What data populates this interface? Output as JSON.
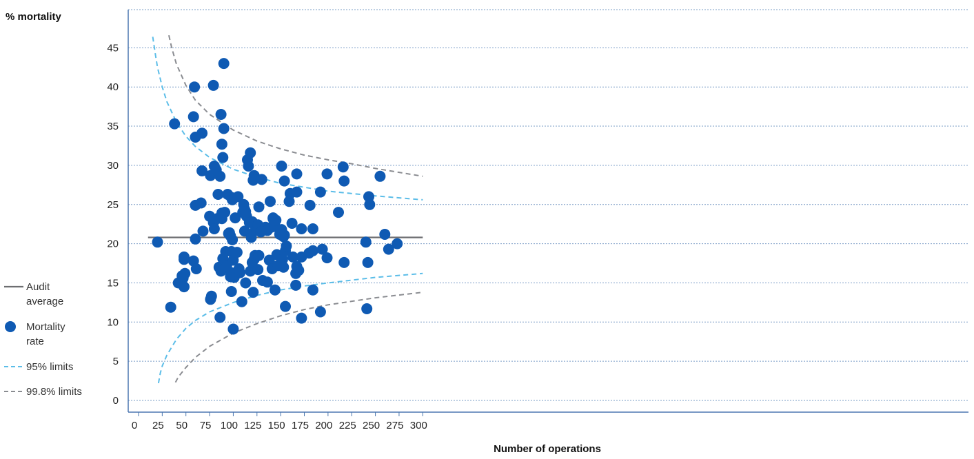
{
  "chart_data": {
    "type": "scatter",
    "ylabel": "% mortality",
    "xlabel": "Number of operations",
    "xlim": [
      0,
      300
    ],
    "ylim": [
      0,
      48
    ],
    "x_ticks": [
      0,
      25,
      50,
      75,
      100,
      125,
      150,
      175,
      200,
      225,
      250,
      275,
      300
    ],
    "y_ticks": [
      0,
      5,
      10,
      15,
      20,
      25,
      30,
      35,
      40,
      45
    ],
    "grid": "horizontal-dotted",
    "legend_position": "left",
    "colors": {
      "audit_average": "#6d6e71",
      "mortality_rate": "#0f5ab3",
      "limit95": "#5bbde8",
      "limit998": "#8a8c91",
      "grid": "#7a9cc6",
      "axis": "#4b77b0"
    },
    "legend": [
      {
        "key": "audit_average",
        "label_lines": [
          "Audit",
          "average"
        ],
        "marker": "line"
      },
      {
        "key": "mortality_rate",
        "label_lines": [
          "Mortality",
          "rate"
        ],
        "marker": "dot"
      },
      {
        "key": "limit95",
        "label_lines": [
          "95% limits"
        ],
        "marker": "dash"
      },
      {
        "key": "limit998",
        "label_lines": [
          "99.8% limits"
        ],
        "marker": "dash"
      }
    ],
    "audit_average": {
      "value": 20.8,
      "x_range": [
        10,
        300
      ]
    },
    "limit95_upper": [
      [
        15,
        46.4
      ],
      [
        18,
        44.0
      ],
      [
        20,
        42.5
      ],
      [
        25,
        40.0
      ],
      [
        30,
        38.1
      ],
      [
        40,
        35.5
      ],
      [
        50,
        33.7
      ],
      [
        60,
        32.4
      ],
      [
        75,
        31.0
      ],
      [
        100,
        29.5
      ],
      [
        125,
        28.5
      ],
      [
        150,
        27.7
      ],
      [
        175,
        27.2
      ],
      [
        200,
        26.7
      ],
      [
        250,
        26.1
      ],
      [
        300,
        25.6
      ]
    ],
    "limit95_lower": [
      [
        21,
        2.2
      ],
      [
        23,
        3.5
      ],
      [
        25,
        4.4
      ],
      [
        30,
        5.8
      ],
      [
        40,
        7.8
      ],
      [
        50,
        9.2
      ],
      [
        60,
        10.2
      ],
      [
        75,
        11.3
      ],
      [
        100,
        12.5
      ],
      [
        125,
        13.4
      ],
      [
        150,
        14.1
      ],
      [
        175,
        14.6
      ],
      [
        200,
        15.0
      ],
      [
        250,
        15.7
      ],
      [
        300,
        16.2
      ]
    ],
    "limit998_upper": [
      [
        32,
        46.6
      ],
      [
        35,
        45.0
      ],
      [
        40,
        42.9
      ],
      [
        50,
        40.2
      ],
      [
        60,
        38.3
      ],
      [
        75,
        36.5
      ],
      [
        100,
        34.5
      ],
      [
        125,
        33.1
      ],
      [
        150,
        32.1
      ],
      [
        175,
        31.3
      ],
      [
        200,
        30.7
      ],
      [
        225,
        30.2
      ],
      [
        250,
        29.6
      ],
      [
        300,
        28.6
      ]
    ],
    "limit998_lower": [
      [
        39,
        2.3
      ],
      [
        42,
        3.0
      ],
      [
        50,
        4.2
      ],
      [
        60,
        5.5
      ],
      [
        75,
        6.9
      ],
      [
        100,
        8.6
      ],
      [
        125,
        9.8
      ],
      [
        150,
        10.8
      ],
      [
        175,
        11.6
      ],
      [
        200,
        12.2
      ],
      [
        250,
        13.1
      ],
      [
        300,
        13.8
      ]
    ],
    "points": [
      [
        20,
        20.2
      ],
      [
        34,
        11.9
      ],
      [
        38,
        35.3
      ],
      [
        42,
        15.0
      ],
      [
        46,
        15.9
      ],
      [
        47,
        15.6
      ],
      [
        48,
        18.0
      ],
      [
        48,
        18.3
      ],
      [
        48,
        14.5
      ],
      [
        49,
        16.2
      ],
      [
        58,
        36.2
      ],
      [
        58,
        17.8
      ],
      [
        59,
        40.0
      ],
      [
        60,
        33.6
      ],
      [
        60,
        20.6
      ],
      [
        60,
        24.9
      ],
      [
        61,
        16.8
      ],
      [
        66,
        25.2
      ],
      [
        67,
        34.1
      ],
      [
        67,
        29.3
      ],
      [
        68,
        21.6
      ],
      [
        75,
        23.5
      ],
      [
        76,
        28.7
      ],
      [
        76,
        12.9
      ],
      [
        77,
        13.3
      ],
      [
        79,
        40.2
      ],
      [
        79,
        22.7
      ],
      [
        80,
        29.9
      ],
      [
        80,
        21.9
      ],
      [
        82,
        29.4
      ],
      [
        83,
        23.2
      ],
      [
        84,
        26.3
      ],
      [
        85,
        17.0
      ],
      [
        86,
        10.6
      ],
      [
        86,
        28.6
      ],
      [
        87,
        36.5
      ],
      [
        87,
        16.5
      ],
      [
        88,
        32.7
      ],
      [
        88,
        23.9
      ],
      [
        88,
        23.2
      ],
      [
        89,
        31.0
      ],
      [
        89,
        18.1
      ],
      [
        90,
        43.0
      ],
      [
        90,
        34.7
      ],
      [
        91,
        24.0
      ],
      [
        92,
        19.0
      ],
      [
        93,
        17.2
      ],
      [
        94,
        26.3
      ],
      [
        95,
        21.3
      ],
      [
        96,
        21.4
      ],
      [
        97,
        15.8
      ],
      [
        97,
        21.0
      ],
      [
        98,
        19.0
      ],
      [
        98,
        13.9
      ],
      [
        98,
        16.3
      ],
      [
        98,
        25.9
      ],
      [
        99,
        20.5
      ],
      [
        99,
        25.6
      ],
      [
        100,
        17.9
      ],
      [
        100,
        9.1
      ],
      [
        101,
        15.7
      ],
      [
        102,
        23.3
      ],
      [
        104,
        18.9
      ],
      [
        105,
        26.0
      ],
      [
        106,
        16.8
      ],
      [
        107,
        16.3
      ],
      [
        109,
        12.6
      ],
      [
        110,
        24.0
      ],
      [
        111,
        25.0
      ],
      [
        112,
        24.4
      ],
      [
        112,
        21.6
      ],
      [
        113,
        15.0
      ],
      [
        113,
        24.1
      ],
      [
        114,
        23.5
      ],
      [
        115,
        30.7
      ],
      [
        116,
        29.9
      ],
      [
        117,
        22.7
      ],
      [
        118,
        31.6
      ],
      [
        118,
        16.5
      ],
      [
        119,
        20.8
      ],
      [
        120,
        22.8
      ],
      [
        120,
        17.6
      ],
      [
        121,
        13.8
      ],
      [
        121,
        28.1
      ],
      [
        122,
        28.7
      ],
      [
        122,
        18.0
      ],
      [
        123,
        18.5
      ],
      [
        123,
        21.7
      ],
      [
        125,
        21.7
      ],
      [
        126,
        22.4
      ],
      [
        126,
        16.7
      ],
      [
        127,
        24.7
      ],
      [
        127,
        18.5
      ],
      [
        129,
        21.5
      ],
      [
        130,
        28.2
      ],
      [
        131,
        15.3
      ],
      [
        134,
        22.1
      ],
      [
        136,
        21.7
      ],
      [
        136,
        15.1
      ],
      [
        138,
        17.9
      ],
      [
        139,
        25.4
      ],
      [
        140,
        22.1
      ],
      [
        141,
        16.8
      ],
      [
        142,
        23.2
      ],
      [
        142,
        23.3
      ],
      [
        144,
        22.2
      ],
      [
        144,
        14.1
      ],
      [
        145,
        23.0
      ],
      [
        146,
        18.6
      ],
      [
        147,
        17.2
      ],
      [
        149,
        21.2
      ],
      [
        151,
        21.8
      ],
      [
        151,
        29.9
      ],
      [
        152,
        18.0
      ],
      [
        152,
        21.3
      ],
      [
        153,
        17.0
      ],
      [
        153,
        20.9
      ],
      [
        154,
        28.0
      ],
      [
        154,
        21.1
      ],
      [
        155,
        19.1
      ],
      [
        155,
        12.0
      ],
      [
        156,
        19.7
      ],
      [
        159,
        25.4
      ],
      [
        160,
        26.4
      ],
      [
        162,
        22.6
      ],
      [
        163,
        18.3
      ],
      [
        166,
        14.7
      ],
      [
        166,
        16.2
      ],
      [
        167,
        17.1
      ],
      [
        167,
        26.6
      ],
      [
        167,
        28.9
      ],
      [
        169,
        16.6
      ],
      [
        172,
        21.9
      ],
      [
        172,
        18.3
      ],
      [
        172,
        10.5
      ],
      [
        180,
        18.8
      ],
      [
        181,
        24.9
      ],
      [
        184,
        19.1
      ],
      [
        184,
        14.1
      ],
      [
        184,
        21.9
      ],
      [
        192,
        26.6
      ],
      [
        192,
        11.3
      ],
      [
        194,
        19.3
      ],
      [
        199,
        18.2
      ],
      [
        199,
        28.9
      ],
      [
        211,
        24.0
      ],
      [
        216,
        29.8
      ],
      [
        217,
        28.0
      ],
      [
        217,
        17.6
      ],
      [
        240,
        20.2
      ],
      [
        241,
        11.7
      ],
      [
        242,
        17.6
      ],
      [
        243,
        26.0
      ],
      [
        244,
        25.0
      ],
      [
        255,
        28.6
      ],
      [
        260,
        21.2
      ],
      [
        264,
        19.3
      ],
      [
        273,
        20.0
      ]
    ]
  }
}
